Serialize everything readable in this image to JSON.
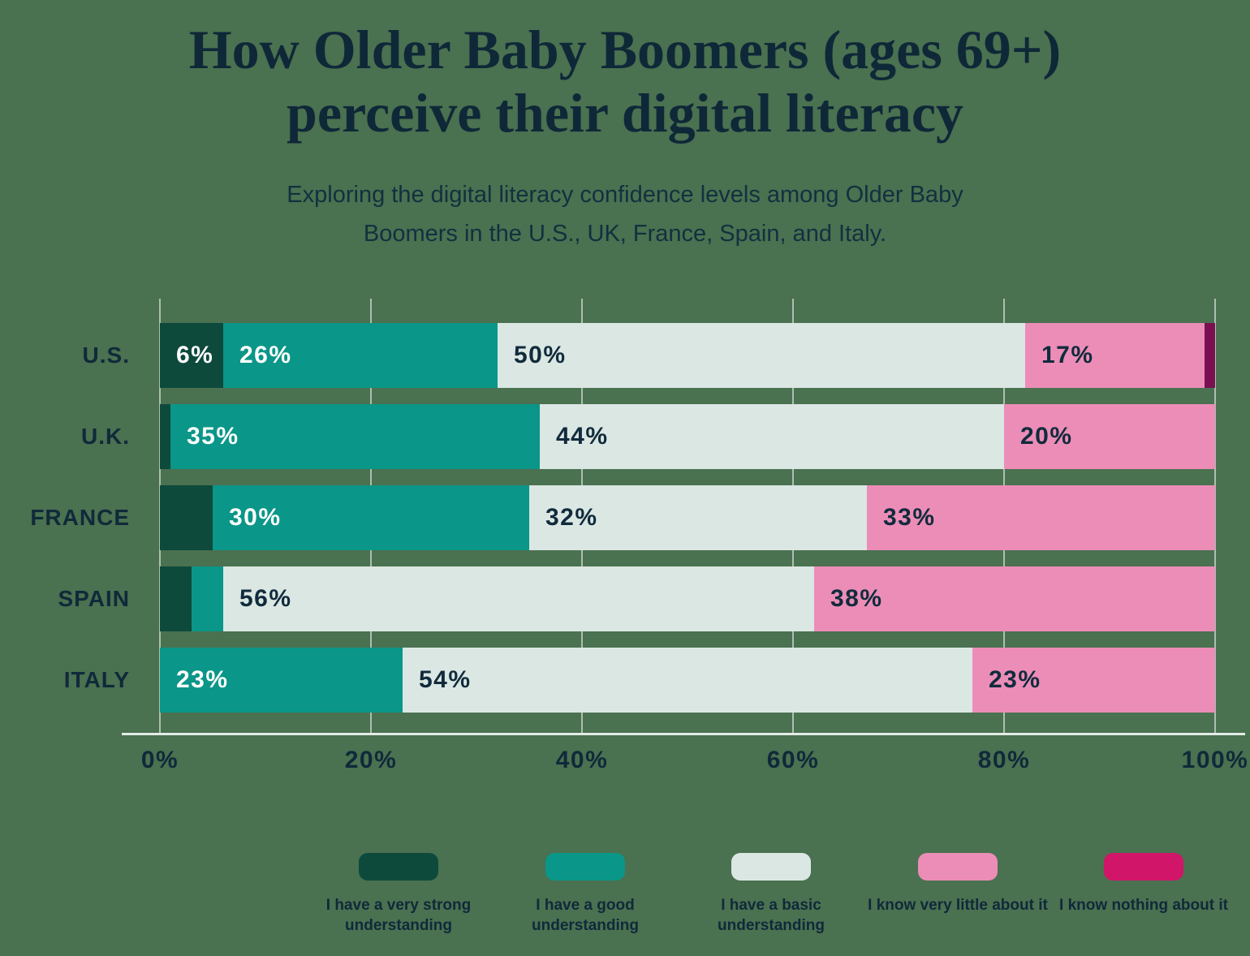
{
  "header": {
    "title_line1": "How Older Baby Boomers (ages 69+)",
    "title_line2": "perceive their digital literacy",
    "subtitle_line1": "Exploring the digital literacy confidence levels among Older Baby",
    "subtitle_line2": "Boomers in the U.S., UK, France, Spain, and Italy."
  },
  "colors": {
    "background": "#4a7150",
    "text": "#10293a",
    "gridline": "rgba(255,255,255,0.55)",
    "axis_line": "#e4ece6"
  },
  "chart_data": {
    "type": "bar",
    "orientation": "horizontal",
    "stacked": true,
    "title": "How Older Baby Boomers (ages 69+) perceive their digital literacy",
    "subtitle": "Exploring the digital literacy confidence levels among Older Baby Boomers in the U.S., UK, France, Spain, and Italy.",
    "categories": [
      "U.S.",
      "U.K.",
      "FRANCE",
      "SPAIN",
      "ITALY"
    ],
    "series": [
      {
        "name": "I have a very strong understanding",
        "color": "#0d4a3c",
        "bar_color": "#0d4a3c",
        "label_color": "#ffffff",
        "values": [
          6,
          1,
          5,
          3,
          0
        ]
      },
      {
        "name": "I have a good understanding",
        "color": "#0a9688",
        "bar_color": "#0a9688",
        "label_color": "#ffffff",
        "values": [
          26,
          35,
          30,
          3,
          23
        ]
      },
      {
        "name": "I have a basic understanding",
        "color": "#dbe7e3",
        "bar_color": "#dbe7e3",
        "label_color": "#112b3c",
        "values": [
          50,
          44,
          32,
          56,
          54
        ]
      },
      {
        "name": "I know very little about it",
        "color": "#ec8db8",
        "bar_color": "#ec8db8",
        "label_color": "#112b3c",
        "values": [
          17,
          20,
          33,
          38,
          23
        ]
      },
      {
        "name": "I know nothing about it",
        "color": "#d11568",
        "bar_color": "#7a1051",
        "label_color": "#112b3c",
        "values": [
          1,
          0,
          0,
          0,
          0
        ]
      }
    ],
    "value_suffix": "%",
    "label_min_value": 6,
    "x_ticks": [
      "0%",
      "20%",
      "40%",
      "60%",
      "80%",
      "100%"
    ],
    "xlim": [
      0,
      100
    ],
    "grid": true,
    "legend_position": "bottom"
  }
}
